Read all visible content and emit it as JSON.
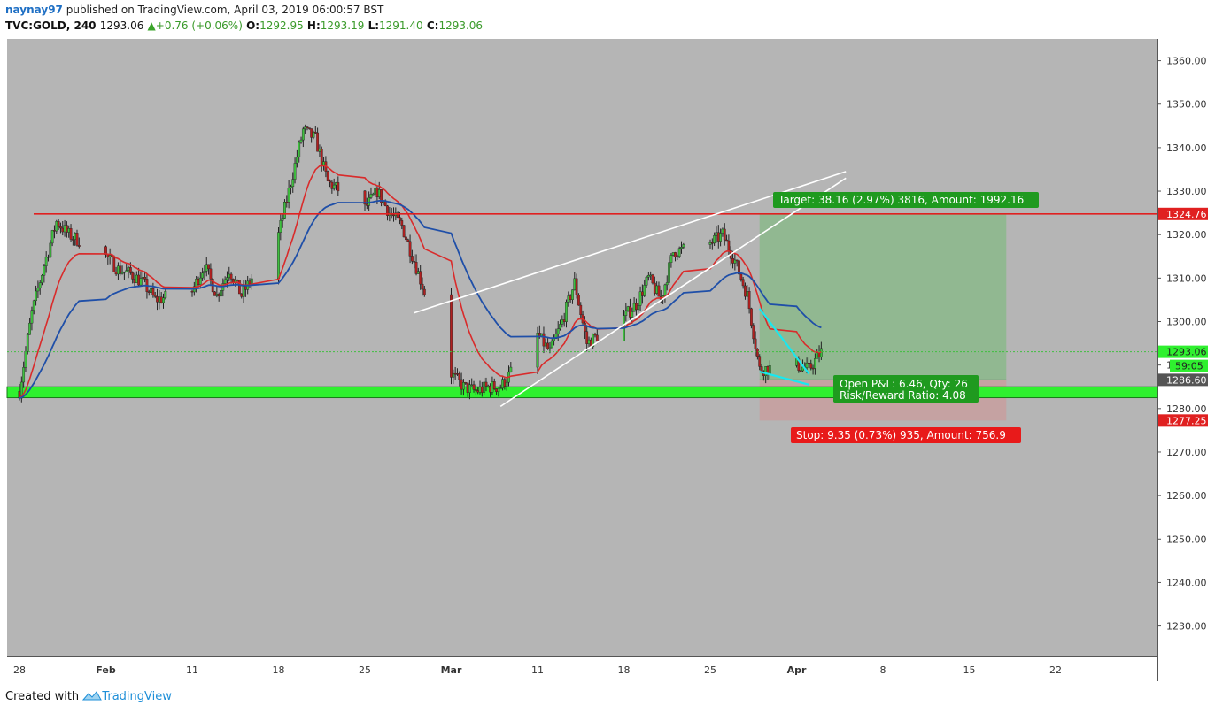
{
  "header": {
    "user": "naynay97",
    "published": "published on TradingView.com, April 03, 2019 06:00:57 BST",
    "symbol": "TVC:GOLD, 240",
    "last": "1293.06",
    "change": "+0.76 (+0.06%)",
    "o_label": "O:",
    "o": "1292.95",
    "h_label": "H:",
    "h": "1293.19",
    "l_label": "L:",
    "l": "1291.40",
    "c_label": "C:",
    "c": "1293.06"
  },
  "footer": {
    "created": "Created with",
    "brand": "TradingView"
  },
  "colors": {
    "background": "#b5b5b5",
    "up_candle": "#3fbf3f",
    "down_candle": "#b02020",
    "ema_red": "#d92b2b",
    "ema_blue": "#1f4fa8",
    "resistance": "#e02020",
    "support_band": "#2ff02f",
    "target_box": "#8db88d",
    "stop_box": "#c7a0a0",
    "trend_lines": "#ffffff",
    "cyan_lines": "#18e8f0"
  },
  "chart_data": {
    "type": "candlestick",
    "timeframe": "240",
    "y_axis": {
      "min": 1223,
      "max": 1365,
      "ticks": [
        1230,
        1240,
        1250,
        1260,
        1270,
        1280,
        1290,
        1300,
        1310,
        1320,
        1330,
        1340,
        1350,
        1360
      ],
      "tick_suffix": ".00"
    },
    "x_axis": {
      "labels": [
        "28",
        "Feb",
        "11",
        "18",
        "25",
        "Mar",
        "11",
        "18",
        "25",
        "Apr",
        "8",
        "15",
        "22"
      ],
      "label_dates": [
        "2019-01-28",
        "2019-02-04",
        "2019-02-11",
        "2019-02-18",
        "2019-02-25",
        "2019-03-04",
        "2019-03-11",
        "2019-03-18",
        "2019-03-25",
        "2019-04-01",
        "2019-04-08",
        "2019-04-15",
        "2019-04-22"
      ]
    },
    "price_path": [
      [
        "2019-01-28",
        1284
      ],
      [
        "2019-01-29",
        1302
      ],
      [
        "2019-01-30",
        1313
      ],
      [
        "2019-01-31",
        1323
      ],
      [
        "2019-02-01",
        1320
      ],
      [
        "2019-02-04",
        1315
      ],
      [
        "2019-02-05",
        1312
      ],
      [
        "2019-02-06",
        1311
      ],
      [
        "2019-02-07",
        1309
      ],
      [
        "2019-02-08",
        1305
      ],
      [
        "2019-02-11",
        1307
      ],
      [
        "2019-02-12",
        1313
      ],
      [
        "2019-02-13",
        1306
      ],
      [
        "2019-02-14",
        1312
      ],
      [
        "2019-02-15",
        1306
      ],
      [
        "2019-02-18",
        1320
      ],
      [
        "2019-02-19",
        1332
      ],
      [
        "2019-02-20",
        1344
      ],
      [
        "2019-02-21",
        1342
      ],
      [
        "2019-02-22",
        1332
      ],
      [
        "2019-02-25",
        1326
      ],
      [
        "2019-02-26",
        1330
      ],
      [
        "2019-02-27",
        1325
      ],
      [
        "2019-02-28",
        1322
      ],
      [
        "2019-03-01",
        1314
      ],
      [
        "2019-03-04",
        1288
      ],
      [
        "2019-03-05",
        1285
      ],
      [
        "2019-03-06",
        1284
      ],
      [
        "2019-03-07",
        1285
      ],
      [
        "2019-03-08",
        1285
      ],
      [
        "2019-03-11",
        1297
      ],
      [
        "2019-03-12",
        1293
      ],
      [
        "2019-03-13",
        1300
      ],
      [
        "2019-03-14",
        1309
      ],
      [
        "2019-03-15",
        1295
      ],
      [
        "2019-03-18",
        1301
      ],
      [
        "2019-03-19",
        1304
      ],
      [
        "2019-03-20",
        1310
      ],
      [
        "2019-03-21",
        1305
      ],
      [
        "2019-03-22",
        1316
      ],
      [
        "2019-03-25",
        1318
      ],
      [
        "2019-03-26",
        1320
      ],
      [
        "2019-03-27",
        1314
      ],
      [
        "2019-03-28",
        1306
      ],
      [
        "2019-03-29",
        1289
      ],
      [
        "2019-04-01",
        1290
      ],
      [
        "2019-04-02",
        1289
      ],
      [
        "2019-04-03",
        1293.06
      ]
    ],
    "series": [
      {
        "name": "",
        "kind": "ema_short",
        "color": "#d92b2b"
      },
      {
        "name": "",
        "kind": "ema_long",
        "color": "#1f4fa8"
      }
    ],
    "levels": {
      "resistance": 1324.76,
      "current": 1293.06,
      "entry": 1286.6,
      "stop": 1277.25,
      "support_band": [
        1282.5,
        1285
      ]
    },
    "axis_badges": {
      "resistance": "1324.76",
      "current": "1293.06",
      "countdown": "59:05",
      "entry": "1286.60",
      "stop": "1277.25"
    },
    "position": {
      "start": "2019-03-29",
      "end": "2019-04-18",
      "target_label": "Target: 38.16 (2.97%) 3816, Amount: 1992.16",
      "stop_label": "Stop: 9.35 (0.73%) 935, Amount: 756.9",
      "pnl_label": "Open P&L: 6.46, Qty: 26",
      "rr_label": "Risk/Reward Ratio: 4.08"
    },
    "drawings": [
      {
        "name": "wedge-lower",
        "from": [
          "2019-03-08",
          1280.5
        ],
        "to": [
          "2019-04-05",
          1333
        ]
      },
      {
        "name": "wedge-upper",
        "from": [
          "2019-03-01",
          1302
        ],
        "to": [
          "2019-04-05",
          1334.5
        ]
      },
      {
        "name": "cyan-upper",
        "from": [
          "2019-03-29",
          1303
        ],
        "to": [
          "2019-04-02",
          1288
        ]
      },
      {
        "name": "cyan-lower",
        "from": [
          "2019-03-29",
          1288.5
        ],
        "to": [
          "2019-04-02",
          1285.5
        ]
      }
    ]
  }
}
